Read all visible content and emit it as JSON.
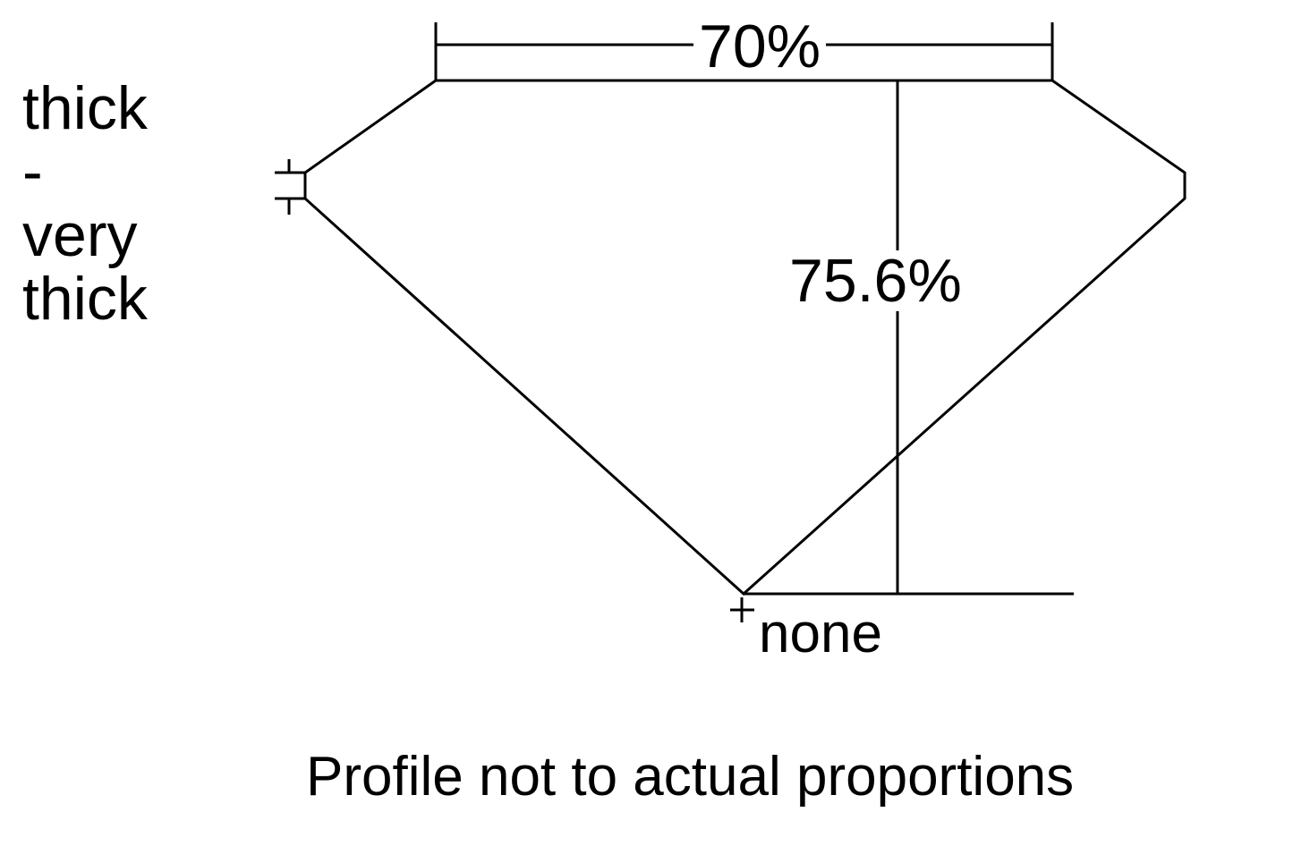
{
  "girdle_label": [
    "thick",
    "-",
    "very",
    "thick"
  ],
  "table_label": "70%",
  "depth_label": "75.6%",
  "culet_label": "none",
  "caption": "Profile not to actual proportions",
  "line_color": "#000000"
}
